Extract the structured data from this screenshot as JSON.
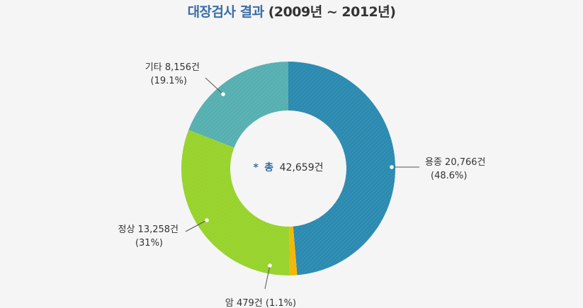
{
  "title": {
    "main": "대장검사 결과",
    "sub": "(2009년 ~ 2012년)"
  },
  "chart_data": {
    "type": "pie",
    "donut": true,
    "total_label": {
      "marker": "*",
      "prefix": "총",
      "value": "42,659건"
    },
    "slices": [
      {
        "name": "용종",
        "count": 20766,
        "percent": 48.6,
        "label_line1": "용종 20,766건",
        "label_line2": "(48.6%)",
        "color": "#2b8ab0"
      },
      {
        "name": "암",
        "count": 479,
        "percent": 1.1,
        "label_line1": "암 479건 (1.1%)",
        "label_line2": "",
        "color": "#f2b705"
      },
      {
        "name": "정상",
        "count": 13258,
        "percent": 31,
        "label_line1": "정상 13,258건",
        "label_line2": "(31%)",
        "color": "#97d32b"
      },
      {
        "name": "기타",
        "count": 8156,
        "percent": 19.1,
        "label_line1": "기타 8,156건",
        "label_line2": "(19.1%)",
        "color": "#56afb0"
      }
    ]
  },
  "colors": {
    "title_accent": "#3a6ea5",
    "total_marker": "#3a6ea5",
    "background": "#f5f5f5"
  }
}
